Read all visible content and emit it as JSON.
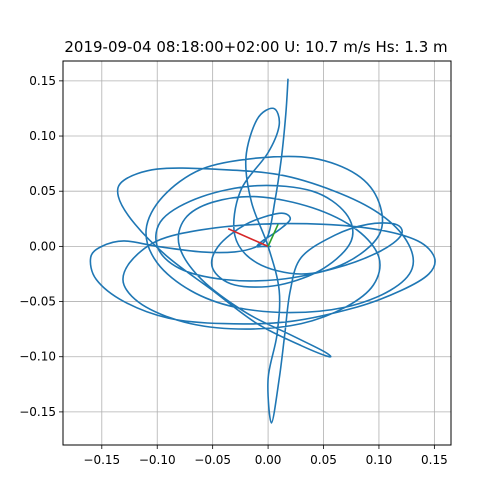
{
  "chart_data": {
    "type": "line",
    "title": "2019-09-04 08:18:00+02:00 U: 10.7 m/s Hs: 1.3 m",
    "xlabel": "",
    "ylabel": "",
    "xlim": [
      -0.185,
      0.165
    ],
    "ylim": [
      -0.18,
      0.168
    ],
    "xticks": [
      -0.15,
      -0.1,
      -0.05,
      0.0,
      0.05,
      0.1,
      0.15
    ],
    "xtick_labels": [
      "−0.15",
      "−0.10",
      "−0.05",
      "0.00",
      "0.05",
      "0.10",
      "0.15"
    ],
    "yticks": [
      -0.15,
      -0.1,
      -0.05,
      0.0,
      0.05,
      0.1,
      0.15
    ],
    "ytick_labels": [
      "−0.15",
      "−0.10",
      "−0.05",
      "0.00",
      "0.05",
      "0.10",
      "0.15"
    ],
    "grid": true,
    "colors": {
      "trajectory": "#1f77b4",
      "arrow_a": "#d62728",
      "arrow_b": "#2ca02c",
      "grid": "#b0b0b0"
    },
    "series": [
      {
        "color": "#1f77b4",
        "x": [
          0.018,
          0.016,
          0.012,
          0.006,
          0.0,
          -0.01,
          -0.03,
          -0.06,
          -0.1,
          -0.13,
          -0.15,
          -0.16,
          -0.155,
          -0.13,
          -0.09,
          -0.04,
          0.02,
          0.08,
          0.12,
          0.145,
          0.15,
          0.135,
          0.1,
          0.05,
          -0.01,
          -0.06,
          -0.1,
          -0.125,
          -0.13,
          -0.11,
          -0.07,
          -0.02,
          0.03,
          0.07,
          0.095,
          0.1,
          0.08,
          0.04,
          -0.01,
          -0.05,
          -0.075,
          -0.08,
          -0.06,
          -0.02,
          0.02,
          0.05,
          0.055,
          0.03,
          -0.01,
          -0.05,
          -0.09,
          -0.12,
          -0.135,
          -0.13,
          -0.1,
          -0.05,
          0.01,
          0.06,
          0.1,
          0.125,
          0.13,
          0.11,
          0.07,
          0.02,
          -0.03,
          -0.07,
          -0.1,
          -0.11,
          -0.095,
          -0.06,
          -0.01,
          0.04,
          0.08,
          0.1,
          0.1,
          0.07,
          0.03,
          -0.01,
          -0.03,
          -0.025,
          0.0,
          0.01,
          0.005,
          -0.01,
          -0.02,
          -0.015,
          0.0,
          0.01,
          0.008,
          0.0,
          0.003,
          0.01,
          0.015,
          0.02,
          0.03,
          0.06,
          0.09,
          0.115,
          0.12,
          0.1,
          0.06,
          0.01,
          -0.04,
          -0.08,
          -0.1,
          -0.095,
          -0.06,
          -0.01,
          0.04,
          0.07,
          0.075,
          0.05,
          0.01,
          -0.03,
          -0.05,
          -0.045,
          -0.02,
          0.01,
          0.02,
          0.01,
          -0.005,
          -0.01,
          -0.005,
          0.0,
          0.002,
          0.002
        ],
        "y": [
          0.152,
          0.12,
          0.08,
          0.04,
          0.01,
          0.0,
          -0.005,
          -0.005,
          0.0,
          0.005,
          0.0,
          -0.01,
          -0.03,
          -0.05,
          -0.065,
          -0.07,
          -0.068,
          -0.055,
          -0.04,
          -0.025,
          -0.01,
          0.005,
          0.015,
          0.02,
          0.02,
          0.015,
          0.005,
          -0.015,
          -0.035,
          -0.055,
          -0.07,
          -0.075,
          -0.07,
          -0.055,
          -0.035,
          -0.01,
          0.015,
          0.035,
          0.045,
          0.04,
          0.025,
          0.0,
          -0.03,
          -0.06,
          -0.08,
          -0.095,
          -0.1,
          -0.09,
          -0.07,
          -0.04,
          -0.01,
          0.02,
          0.045,
          0.06,
          0.07,
          0.07,
          0.065,
          0.05,
          0.03,
          0.005,
          -0.02,
          -0.04,
          -0.055,
          -0.06,
          -0.055,
          -0.04,
          -0.015,
          0.015,
          0.045,
          0.07,
          0.08,
          0.08,
          0.065,
          0.04,
          0.01,
          -0.015,
          -0.025,
          -0.015,
          0.01,
          0.05,
          0.085,
          0.11,
          0.125,
          0.115,
          0.08,
          0.04,
          0.0,
          -0.04,
          -0.08,
          -0.12,
          -0.16,
          -0.12,
          -0.08,
          -0.04,
          -0.01,
          0.01,
          0.02,
          0.02,
          0.01,
          -0.005,
          -0.02,
          -0.03,
          -0.03,
          -0.02,
          0.0,
          0.025,
          0.045,
          0.055,
          0.05,
          0.03,
          0.005,
          -0.02,
          -0.035,
          -0.035,
          -0.02,
          0.0,
          0.02,
          0.03,
          0.025,
          0.015,
          0.005,
          0.0,
          0.0,
          0.0,
          0.0,
          0.0
        ]
      }
    ],
    "annotations": [
      {
        "type": "arrow",
        "color": "#d62728",
        "x": [
          0.0,
          -0.036
        ],
        "y": [
          0.0,
          0.016
        ]
      },
      {
        "type": "arrow",
        "color": "#2ca02c",
        "x": [
          0.0,
          0.009
        ],
        "y": [
          0.0,
          0.02
        ]
      }
    ]
  }
}
